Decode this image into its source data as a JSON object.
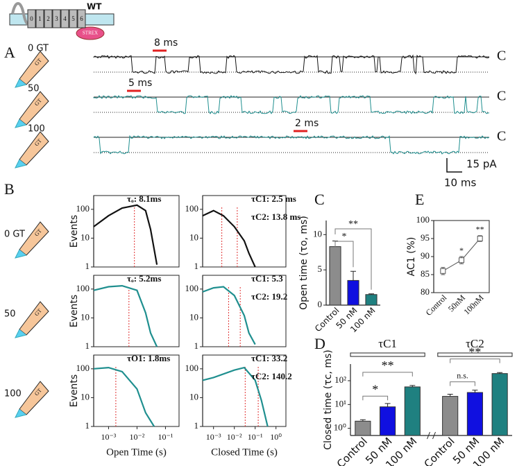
{
  "header": {
    "label": "WT",
    "segments": [
      "0",
      "1",
      "2",
      "3",
      "4",
      "5",
      "6"
    ],
    "domain": "STREX"
  },
  "panel_letters": [
    "A",
    "B",
    "C",
    "D",
    "E"
  ],
  "pipette_label": "GT",
  "panel_a": {
    "conditions": [
      "0 GT",
      "50",
      "100"
    ],
    "durations": [
      "8 ms",
      "5 ms",
      "2 ms"
    ],
    "state_label": "C",
    "scale": [
      "15 pA",
      "10 ms"
    ]
  },
  "panel_b": {
    "conditions": [
      "0 GT",
      "50",
      "100"
    ]
  },
  "chart_data": [
    {
      "type": "line",
      "xscale": "log",
      "yscale": "log",
      "xlim": [
        0.0003,
        0.3
      ],
      "ylim": [
        1,
        300
      ],
      "yticks": [
        1,
        10,
        100
      ],
      "ylabel": "Events",
      "x": [
        0.0003,
        0.001,
        0.003,
        0.01,
        0.02,
        0.03,
        0.05
      ],
      "series": [
        {
          "color": "#111111",
          "values": [
            25,
            60,
            110,
            140,
            90,
            20,
            1.2
          ]
        }
      ],
      "annotations": [
        "τₒ: 8.1ms"
      ],
      "markers": [
        0.0081
      ],
      "marker_color": "#e03030"
    },
    {
      "type": "line",
      "xscale": "log",
      "yscale": "log",
      "xlim": [
        0.0003,
        3
      ],
      "ylim": [
        1,
        300
      ],
      "yticks": [
        1,
        10,
        100
      ],
      "x": [
        0.0003,
        0.001,
        0.003,
        0.01,
        0.03,
        0.05,
        0.1
      ],
      "series": [
        {
          "color": "#111111",
          "values": [
            60,
            90,
            60,
            25,
            8,
            3,
            1
          ]
        }
      ],
      "annotations": [
        "τC1: 2.5  ms",
        "τC2: 13.8 ms"
      ],
      "markers": [
        0.0025,
        0.0138
      ],
      "marker_color": "#e03030"
    },
    {
      "type": "line",
      "xscale": "log",
      "yscale": "log",
      "xlim": [
        0.0003,
        0.3
      ],
      "ylim": [
        1,
        300
      ],
      "yticks": [
        1,
        10,
        100
      ],
      "ylabel": "Events",
      "x": [
        0.0003,
        0.001,
        0.003,
        0.01,
        0.02,
        0.03,
        0.05
      ],
      "series": [
        {
          "color": "#1f8f8f",
          "values": [
            90,
            120,
            130,
            90,
            15,
            3,
            1
          ]
        }
      ],
      "annotations": [
        "τₒ: 5.2ms"
      ],
      "markers": [
        0.0052
      ],
      "marker_color": "#e03030"
    },
    {
      "type": "line",
      "xscale": "log",
      "yscale": "log",
      "xlim": [
        0.0003,
        3
      ],
      "ylim": [
        1,
        300
      ],
      "yticks": [
        1,
        10,
        100
      ],
      "x": [
        0.0003,
        0.001,
        0.003,
        0.01,
        0.03,
        0.05,
        0.1
      ],
      "series": [
        {
          "color": "#1f8f8f",
          "values": [
            80,
            110,
            120,
            60,
            12,
            3,
            1.2
          ]
        }
      ],
      "annotations": [
        "τC1: 5.3",
        "τC2: 19.2"
      ],
      "markers": [
        0.0053,
        0.0192
      ],
      "marker_color": "#e03030"
    },
    {
      "type": "line",
      "xscale": "log",
      "yscale": "log",
      "xlim": [
        0.0003,
        0.3
      ],
      "ylim": [
        1,
        300
      ],
      "yticks": [
        1,
        10,
        100
      ],
      "ylabel": "Events",
      "xlabel": "Open Time (s)",
      "xticks": [
        {
          "value": 0.001,
          "label": "10⁻³"
        },
        {
          "value": 0.01,
          "label": "10⁻²"
        },
        {
          "value": 0.1,
          "label": "10⁻¹"
        }
      ],
      "x": [
        0.0003,
        0.001,
        0.003,
        0.01,
        0.02,
        0.04
      ],
      "series": [
        {
          "color": "#1f8f8f",
          "values": [
            100,
            110,
            80,
            20,
            3,
            1
          ]
        }
      ],
      "annotations": [
        "τO1: 1.8ms"
      ],
      "markers": [
        0.0018
      ],
      "marker_color": "#e03030"
    },
    {
      "type": "line",
      "xscale": "log",
      "yscale": "log",
      "xlim": [
        0.0003,
        3
      ],
      "ylim": [
        1,
        300
      ],
      "yticks": [
        1,
        10,
        100
      ],
      "xlabel": "Closed Time (s)",
      "xticks": [
        {
          "value": 0.001,
          "label": "10⁻³"
        },
        {
          "value": 0.01,
          "label": "10⁻²"
        },
        {
          "value": 0.1,
          "label": "10⁻¹"
        },
        {
          "value": 1,
          "label": "10⁰"
        }
      ],
      "x": [
        0.0003,
        0.001,
        0.01,
        0.03,
        0.1,
        0.2,
        0.4
      ],
      "series": [
        {
          "color": "#1f8f8f",
          "values": [
            40,
            50,
            90,
            110,
            40,
            8,
            1
          ]
        }
      ],
      "annotations": [
        "τC1: 33.2",
        "τC2: 140.2"
      ],
      "markers": [
        0.0332,
        0.1402
      ],
      "marker_color": "#e03030"
    },
    {
      "type": "bar",
      "ylabel": "Open time (τo, ms)",
      "categories": [
        "Control",
        "50 nM",
        "100 nM"
      ],
      "values": [
        8.3,
        3.5,
        1.5
      ],
      "errors": [
        0.8,
        1.3,
        0.1
      ],
      "colors": [
        "#8c8c8c",
        "#1010e0",
        "#1f8080"
      ],
      "ylim": [
        0,
        12
      ],
      "yticks": [
        0,
        5,
        10
      ],
      "annotations": [
        "*",
        "**"
      ]
    },
    {
      "type": "errorline",
      "ylabel": "AC1 (%)",
      "categories": [
        "Control",
        "50nM",
        "100nM"
      ],
      "values": [
        86,
        89,
        95
      ],
      "errors": [
        1,
        1,
        0.8
      ],
      "color": "#555555",
      "ylim": [
        80,
        100
      ],
      "yticks": [
        80,
        85,
        90,
        95,
        100
      ],
      "annotations": [
        "*",
        "**"
      ]
    },
    {
      "type": "bar",
      "yscale": "log",
      "ylabel": "Closed time (τc, ms)",
      "group_labels": [
        "τC1",
        "τC2"
      ],
      "categories": [
        "Control",
        "50 nM",
        "100 nM",
        "Control",
        "50 nM",
        "100 nM"
      ],
      "values": [
        2,
        8,
        55,
        22,
        32,
        200
      ],
      "errors": [
        0.3,
        3,
        8,
        5,
        8,
        20
      ],
      "colors": [
        "#8c8c8c",
        "#1010e0",
        "#1f8080",
        "#8c8c8c",
        "#1010e0",
        "#1f8080"
      ],
      "ylim": [
        0.5,
        500
      ],
      "yticks": [
        {
          "value": 1,
          "label": "10⁰"
        },
        {
          "value": 10,
          "label": "10¹"
        },
        {
          "value": 100,
          "label": "10²"
        }
      ],
      "annotations": [
        "*",
        "**",
        "n.s.",
        "**"
      ]
    }
  ]
}
